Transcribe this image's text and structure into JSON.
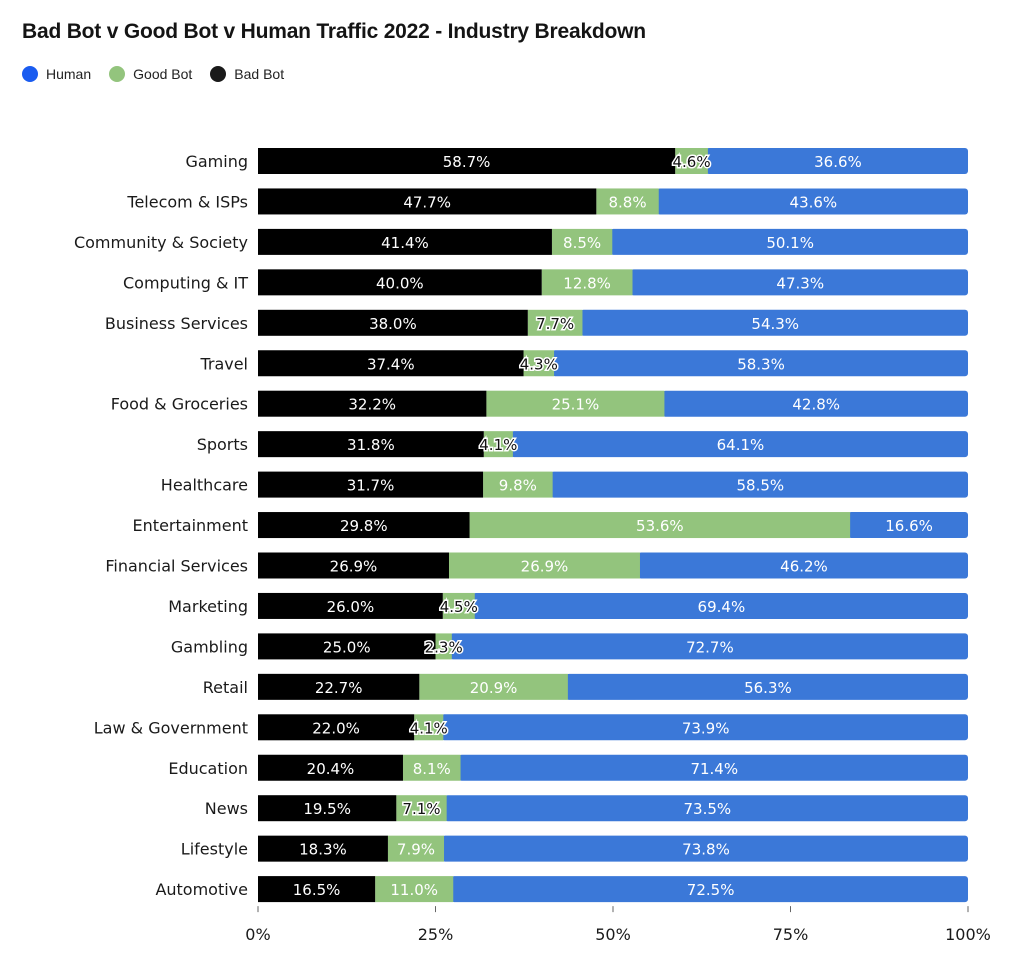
{
  "colors": {
    "human": "#3b78d8",
    "good_bot": "#93c47d",
    "bad_bot": "#000000",
    "legend_human": "#1a5cf0",
    "legend_good_bot": "#93c47d",
    "legend_bad_bot": "#1a1a1a"
  },
  "chart_data": {
    "type": "bar",
    "orientation": "horizontal",
    "stacked": true,
    "title": "Bad Bot v Good Bot v Human Traffic 2022 - Industry Breakdown",
    "legend": [
      "Human",
      "Good Bot",
      "Bad Bot"
    ],
    "legend_position": "top-left",
    "categories": [
      "Gaming",
      "Telecom & ISPs",
      "Community & Society",
      "Computing & IT",
      "Business Services",
      "Travel",
      "Food & Groceries",
      "Sports",
      "Healthcare",
      "Entertainment",
      "Financial Services",
      "Marketing",
      "Gambling",
      "Retail",
      "Law & Government",
      "Education",
      "News",
      "Lifestyle",
      "Automotive"
    ],
    "series": [
      {
        "name": "Bad Bot",
        "values": [
          58.7,
          47.7,
          41.4,
          40.0,
          38.0,
          37.4,
          32.2,
          31.8,
          31.7,
          29.8,
          26.9,
          26.0,
          25.0,
          22.7,
          22.0,
          20.4,
          19.5,
          18.3,
          16.5
        ]
      },
      {
        "name": "Good Bot",
        "values": [
          4.6,
          8.8,
          8.5,
          12.8,
          7.7,
          4.3,
          25.1,
          4.1,
          9.8,
          53.6,
          26.9,
          4.5,
          2.3,
          20.9,
          4.1,
          8.1,
          7.1,
          7.9,
          11.0
        ]
      },
      {
        "name": "Human",
        "values": [
          36.6,
          43.6,
          50.1,
          47.3,
          54.3,
          58.3,
          42.8,
          64.1,
          58.5,
          16.6,
          46.2,
          69.4,
          72.7,
          56.3,
          73.9,
          71.4,
          73.5,
          73.8,
          72.5
        ]
      }
    ],
    "xlim": [
      0,
      100
    ],
    "x_ticks": [
      "0%",
      "25%",
      "50%",
      "75%",
      "100%"
    ],
    "grid": false
  }
}
